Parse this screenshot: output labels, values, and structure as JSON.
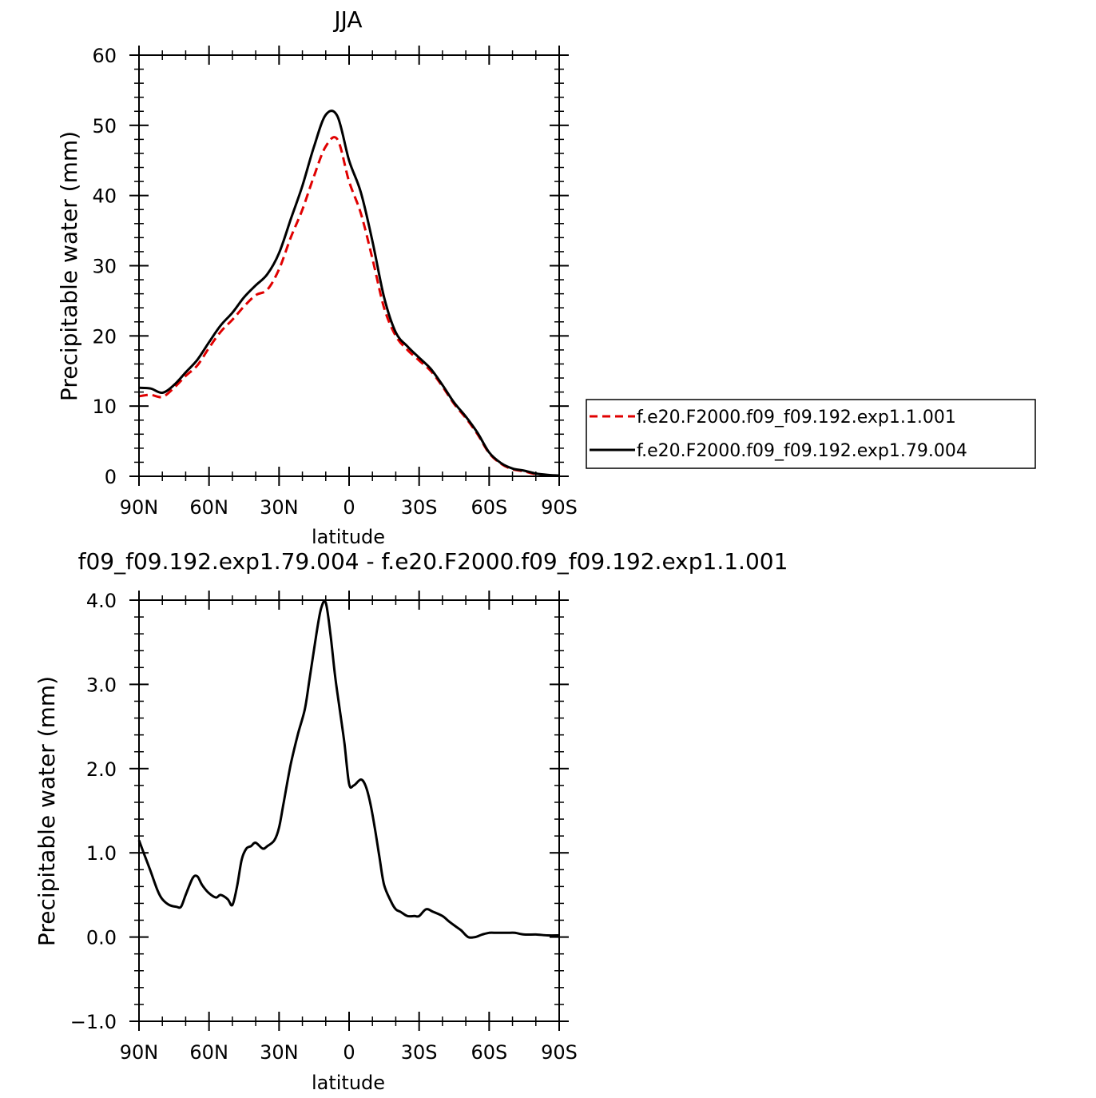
{
  "chart_data": [
    {
      "type": "line",
      "title": "JJA",
      "xlabel": "latitude",
      "ylabel": "Precipitable water (mm)",
      "xlim": [
        90,
        -90
      ],
      "ylim": [
        0,
        60
      ],
      "x_tick_values": [
        90,
        60,
        30,
        0,
        -30,
        -60,
        -90
      ],
      "x_tick_labels": [
        "90N",
        "60N",
        "30N",
        "0",
        "30S",
        "60S",
        "90S"
      ],
      "y_tick_values": [
        0,
        10,
        20,
        30,
        40,
        50,
        60
      ],
      "y_tick_labels": [
        "0",
        "10",
        "20",
        "30",
        "40",
        "50",
        "60"
      ],
      "legend_position": "right",
      "series": [
        {
          "name": "f.e20.F2000.f09_f09.192.exp1.1.001",
          "color": "#e00000",
          "dash": "dashed",
          "x": [
            90,
            85,
            80,
            75,
            70,
            65,
            60,
            55,
            50,
            45,
            40,
            35,
            30,
            25,
            20,
            15,
            10,
            5,
            0,
            -5,
            -10,
            -15,
            -20,
            -25,
            -30,
            -35,
            -40,
            -45,
            -50,
            -55,
            -60,
            -65,
            -70,
            -75,
            -80,
            -85,
            -90
          ],
          "values": [
            11.4,
            11.6,
            11.3,
            12.6,
            14.3,
            15.8,
            18.3,
            20.6,
            22.3,
            24.2,
            25.8,
            26.6,
            29.5,
            34.0,
            38.0,
            42.8,
            47.0,
            48.0,
            42.0,
            37.5,
            31.0,
            24.0,
            20.0,
            18.0,
            16.5,
            15.0,
            12.8,
            10.3,
            8.3,
            6.0,
            3.3,
            1.8,
            1.0,
            0.7,
            0.3,
            0.1,
            0.1
          ]
        },
        {
          "name": "f.e20.F2000.f09_f09.192.exp1.79.004",
          "color": "#000000",
          "dash": "solid",
          "x": [
            90,
            85,
            80,
            75,
            70,
            65,
            60,
            55,
            50,
            45,
            40,
            35,
            30,
            25,
            20,
            15,
            10,
            5,
            0,
            -5,
            -10,
            -15,
            -20,
            -25,
            -30,
            -35,
            -40,
            -45,
            -50,
            -55,
            -60,
            -65,
            -70,
            -75,
            -80,
            -85,
            -90
          ],
          "values": [
            12.6,
            12.5,
            11.9,
            13.0,
            14.8,
            16.6,
            19.1,
            21.5,
            23.3,
            25.5,
            27.2,
            28.8,
            31.8,
            36.6,
            41.4,
            47.0,
            51.5,
            51.3,
            45.0,
            40.5,
            33.5,
            25.5,
            20.5,
            18.5,
            16.9,
            15.3,
            13.0,
            10.5,
            8.5,
            6.2,
            3.4,
            1.9,
            1.1,
            0.8,
            0.4,
            0.2,
            0.1
          ]
        }
      ]
    },
    {
      "type": "line",
      "title": "f09_f09.192.exp1.79.004 - f.e20.F2000.f09_f09.192.exp1.1.001",
      "xlabel": "latitude",
      "ylabel": "Precipitable water (mm)",
      "xlim": [
        90,
        -90
      ],
      "ylim": [
        -1.0,
        4.0
      ],
      "x_tick_values": [
        90,
        60,
        30,
        0,
        -30,
        -60,
        -90
      ],
      "x_tick_labels": [
        "90N",
        "60N",
        "30N",
        "0",
        "30S",
        "60S",
        "90S"
      ],
      "y_tick_values": [
        -1.0,
        0.0,
        1.0,
        2.0,
        3.0,
        4.0
      ],
      "y_tick_labels": [
        "−1.0",
        "0.0",
        "1.0",
        "2.0",
        "3.0",
        "4.0"
      ],
      "series": [
        {
          "color": "#000000",
          "dash": "solid",
          "x": [
            90,
            88,
            85,
            82,
            80,
            77,
            74,
            72,
            70,
            67,
            65,
            63,
            60,
            57,
            55,
            52,
            50,
            48,
            46,
            44,
            42,
            40,
            37,
            35,
            32,
            30,
            28,
            25,
            22,
            19,
            17,
            14,
            12,
            10,
            8,
            6,
            4,
            2,
            0,
            -2,
            -5,
            -7,
            -9,
            -11,
            -13,
            -15,
            -18,
            -20,
            -22,
            -25,
            -28,
            -30,
            -33,
            -36,
            -40,
            -43,
            -46,
            -48,
            -51,
            -54,
            -57,
            -60,
            -63,
            -65,
            -68,
            -71,
            -75,
            -80,
            -85,
            -90
          ],
          "values": [
            1.15,
            1.0,
            0.78,
            0.55,
            0.45,
            0.38,
            0.36,
            0.36,
            0.5,
            0.7,
            0.72,
            0.62,
            0.52,
            0.47,
            0.5,
            0.45,
            0.38,
            0.6,
            0.92,
            1.05,
            1.08,
            1.12,
            1.05,
            1.08,
            1.15,
            1.3,
            1.6,
            2.05,
            2.4,
            2.7,
            3.05,
            3.6,
            3.9,
            3.97,
            3.6,
            3.1,
            2.7,
            2.3,
            1.82,
            1.8,
            1.87,
            1.8,
            1.6,
            1.3,
            0.95,
            0.62,
            0.42,
            0.33,
            0.3,
            0.25,
            0.25,
            0.25,
            0.33,
            0.3,
            0.25,
            0.18,
            0.12,
            0.08,
            0.0,
            0.0,
            0.03,
            0.05,
            0.05,
            0.05,
            0.05,
            0.05,
            0.03,
            0.03,
            0.02,
            0.02
          ]
        }
      ]
    }
  ]
}
